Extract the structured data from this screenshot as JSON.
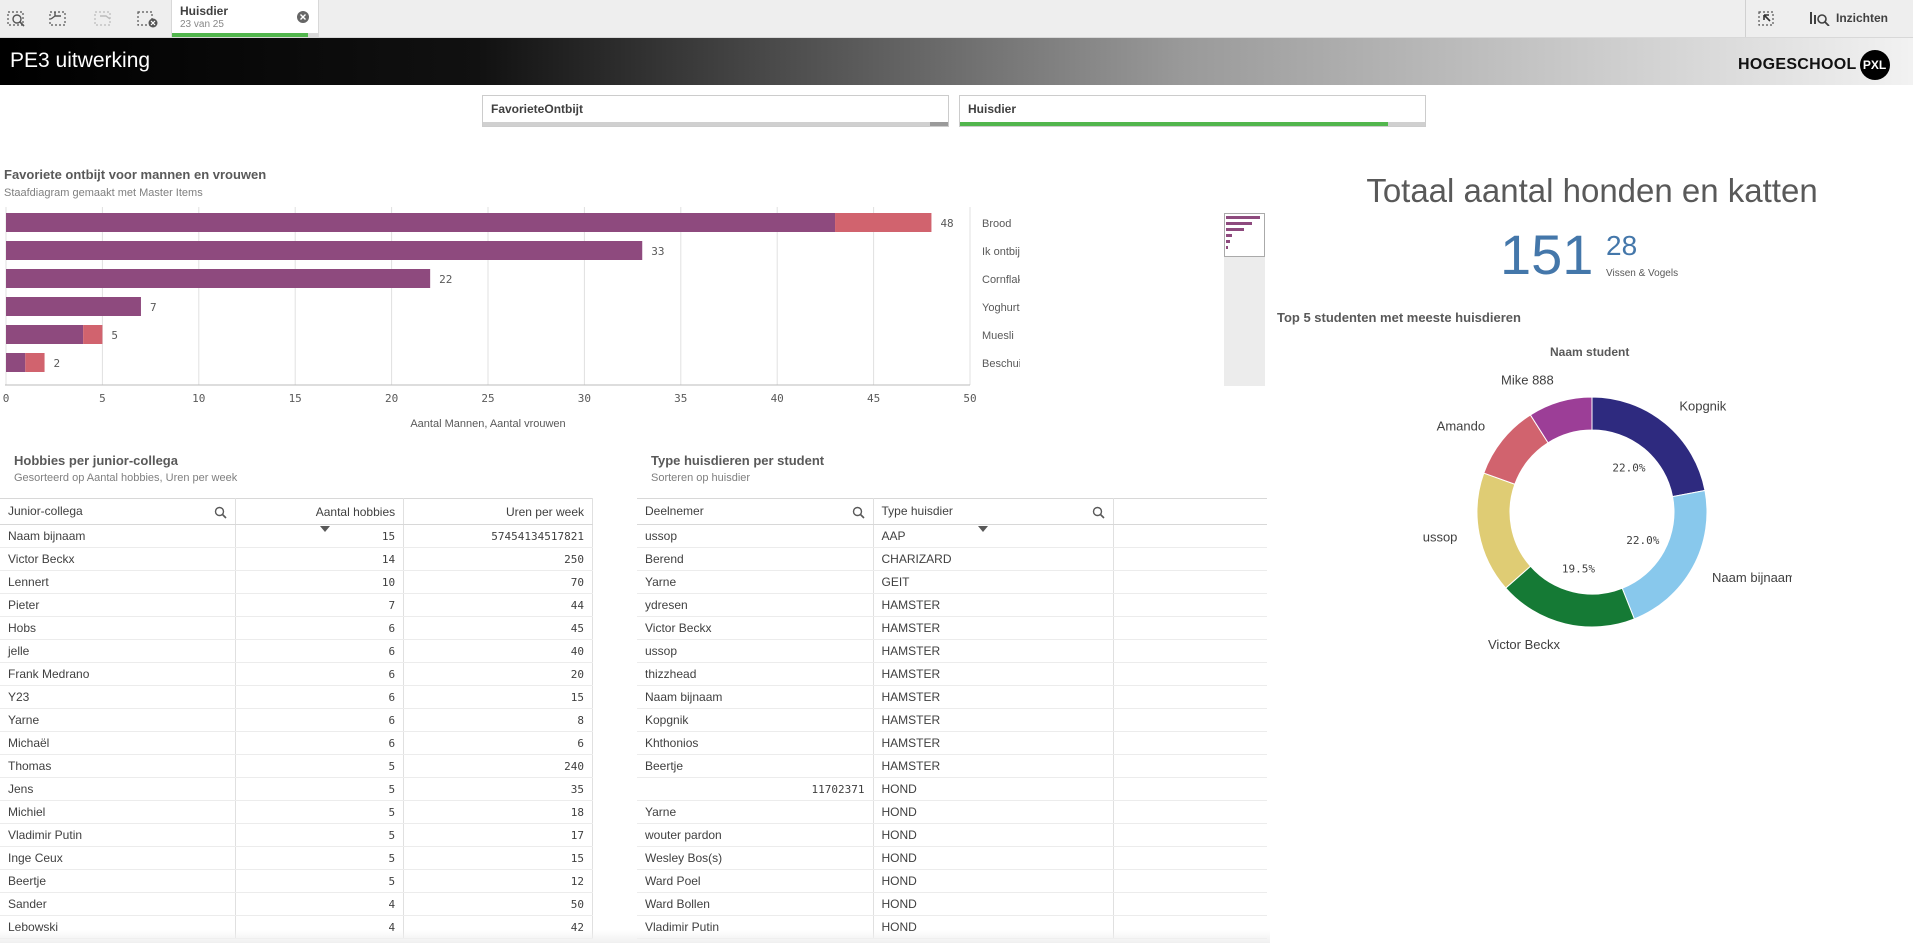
{
  "toolbar": {
    "selection_tab": {
      "field": "Huisdier",
      "count": "23 van 25",
      "fraction": 0.92
    },
    "insights_label": "Inzichten"
  },
  "app": {
    "title": "PE3 uitwerking",
    "logo_text": "HOGESCHOOL",
    "logo_badge": "PXL"
  },
  "filters": [
    {
      "label": "FavorieteOntbijt",
      "selected_fraction": 0.0
    },
    {
      "label": "Huisdier",
      "selected_fraction": 0.92
    }
  ],
  "bar_panel": {
    "title": "Favoriete ontbijt voor mannen en vrouwen",
    "subtitle": "Staafdiagram gemaakt met Master Items"
  },
  "kpi": {
    "title": "Totaal aantal honden en katten",
    "main_value": "151",
    "secondary_value": "28",
    "secondary_label": "Vissen & Vogels"
  },
  "donut_panel": {
    "title": "Top 5 studenten met meeste huisdieren",
    "dimension_label": "Naam student"
  },
  "hobbies_table": {
    "title": "Hobbies per junior-collega",
    "subtitle": "Gesorteerd op Aantal hobbies, Uren per week",
    "columns": [
      "Junior-collega",
      "Aantal hobbies",
      "Uren per week"
    ],
    "rows": [
      [
        "Naam bijnaam",
        "15",
        "57454134517821"
      ],
      [
        "Victor Beckx",
        "14",
        "250"
      ],
      [
        "Lennert",
        "10",
        "70"
      ],
      [
        "Pieter",
        "7",
        "44"
      ],
      [
        "Hobs",
        "6",
        "45"
      ],
      [
        "jelle",
        "6",
        "40"
      ],
      [
        "Frank Medrano",
        "6",
        "20"
      ],
      [
        "Y23",
        "6",
        "15"
      ],
      [
        "Yarne",
        "6",
        "8"
      ],
      [
        "Michaël",
        "6",
        "6"
      ],
      [
        "Thomas",
        "5",
        "240"
      ],
      [
        "Jens",
        "5",
        "35"
      ],
      [
        "Michiel",
        "5",
        "18"
      ],
      [
        "Vladimir Putin",
        "5",
        "17"
      ],
      [
        "Inge Ceux",
        "5",
        "15"
      ],
      [
        "Beertje",
        "5",
        "12"
      ],
      [
        "Sander",
        "4",
        "50"
      ],
      [
        "Lebowski",
        "4",
        "42"
      ]
    ]
  },
  "pets_table": {
    "title": "Type huisdieren per student",
    "subtitle": "Sorteren op huisdier",
    "columns": [
      "Deelnemer",
      "Type huisdier"
    ],
    "rows": [
      [
        "ussop",
        "AAP"
      ],
      [
        "Berend",
        "CHARIZARD"
      ],
      [
        "Yarne",
        "GEIT"
      ],
      [
        "ydresen",
        "HAMSTER"
      ],
      [
        "Victor Beckx",
        "HAMSTER"
      ],
      [
        "ussop",
        "HAMSTER"
      ],
      [
        "thizzhead",
        "HAMSTER"
      ],
      [
        "Naam bijnaam",
        "HAMSTER"
      ],
      [
        "Kopgnik",
        "HAMSTER"
      ],
      [
        "Khthonios",
        "HAMSTER"
      ],
      [
        "Beertje",
        "HAMSTER"
      ],
      [
        "11702371",
        "HOND"
      ],
      [
        "Yarne",
        "HOND"
      ],
      [
        "wouter pardon",
        "HOND"
      ],
      [
        "Wesley Bos(s)",
        "HOND"
      ],
      [
        "Ward Poel",
        "HOND"
      ],
      [
        "Ward Bollen",
        "HOND"
      ],
      [
        "Vladimir Putin",
        "HOND"
      ]
    ]
  },
  "chart_data": [
    {
      "type": "bar",
      "orientation": "horizontal",
      "stacked": true,
      "categories": [
        "Brood",
        "Ik ontbijt niet",
        "Cornflakes",
        "Yoghurt",
        "Muesli",
        "Beschuit"
      ],
      "series": [
        {
          "values": [
            43,
            33,
            22,
            7,
            4,
            1
          ],
          "color": "#8e4a7e"
        },
        {
          "values": [
            5,
            0,
            0,
            0,
            1,
            1
          ],
          "color": "#d1636e"
        }
      ],
      "totals": [
        48,
        33,
        22,
        7,
        5,
        2
      ],
      "xlabel": "Aantal Mannen,  Aantal vrouwen",
      "xlim": [
        0,
        50
      ],
      "xticks": [
        0,
        5,
        10,
        15,
        20,
        25,
        30,
        35,
        40,
        45,
        50
      ],
      "grid": true
    },
    {
      "type": "pie",
      "donut": true,
      "labels": [
        "Kopgnik",
        "Naam bijnaam",
        "Victor Beckx",
        "ussop",
        "Amando",
        "Mike 888"
      ],
      "values": [
        22.0,
        22.0,
        19.5,
        17.0,
        10.5,
        9.0
      ],
      "percent_labels": [
        "22.0%",
        "22.0%",
        "19.5%",
        "",
        "",
        ""
      ],
      "colors": [
        "#2e2a7f",
        "#88c8ec",
        "#157a35",
        "#dfcc74",
        "#d1636e",
        "#9c3e97"
      ]
    }
  ]
}
